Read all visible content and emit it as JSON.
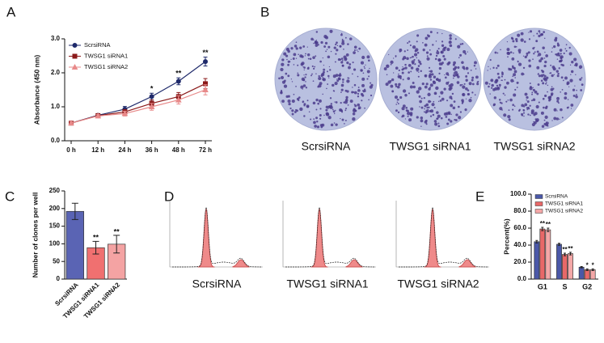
{
  "chart_data": [
    {
      "type": "line",
      "panel": "A",
      "ylabel": "Absorbance (450 nm)",
      "categories": [
        "0 h",
        "12 h",
        "24 h",
        "36 h",
        "48 h",
        "72 h"
      ],
      "ylim": [
        0,
        3
      ],
      "yticks": [
        {
          "value": 0,
          "label": "0.0"
        },
        {
          "value": 1,
          "label": "1.0"
        },
        {
          "value": 2,
          "label": "2.0"
        },
        {
          "value": 3,
          "label": "3.0"
        }
      ],
      "legend": "upper left",
      "series": [
        {
          "name": "ScrsiRNA",
          "color": "#1f2a6b",
          "marker": "circle",
          "values": [
            0.52,
            0.75,
            0.93,
            1.3,
            1.75,
            2.33
          ],
          "errors": [
            0.05,
            0.04,
            0.08,
            0.1,
            0.1,
            0.13
          ],
          "annotations": [
            null,
            null,
            null,
            "*",
            "**",
            "**"
          ]
        },
        {
          "name": "TWSG1 siRNA1",
          "color": "#8b1a1a",
          "marker": "square",
          "values": [
            0.52,
            0.74,
            0.85,
            1.1,
            1.3,
            1.68
          ],
          "errors": [
            0.05,
            0.04,
            0.07,
            0.1,
            0.12,
            0.15
          ]
        },
        {
          "name": "TWSG1 siRNA2",
          "color": "#e88a8a",
          "marker": "triangle",
          "values": [
            0.52,
            0.73,
            0.8,
            1.0,
            1.2,
            1.5
          ],
          "errors": [
            0.05,
            0.04,
            0.07,
            0.1,
            0.12,
            0.15
          ]
        }
      ]
    },
    {
      "type": "image",
      "panel": "B",
      "captions": [
        "ScrsiRNA",
        "TWSG1 siRNA1",
        "TWSG1 siRNA2"
      ]
    },
    {
      "type": "bar",
      "panel": "C",
      "ylabel": "Number of clones per well",
      "categories": [
        "ScrsiRNA",
        "TWSG1 siRNA1",
        "TWSG1 siRNA2"
      ],
      "values": [
        192,
        89,
        99
      ],
      "errors": [
        23,
        18,
        25
      ],
      "colors": [
        "#5a64b4",
        "#f07070",
        "#f4a3a3"
      ],
      "annotations": [
        null,
        "**",
        "**"
      ],
      "xtick_rotation": 45,
      "ylim": [
        0,
        250
      ],
      "yticks": [
        0,
        50,
        100,
        150,
        200,
        250
      ]
    },
    {
      "type": "image",
      "panel": "D",
      "captions": [
        "ScrsiRNA",
        "TWSG1 siRNA1",
        "TWSG1 siRNA2"
      ]
    },
    {
      "type": "bar",
      "panel": "E",
      "ylabel": "Percent(%)",
      "categories": [
        "G1",
        "S",
        "G2"
      ],
      "legend": "upper left",
      "ylim": [
        0,
        100
      ],
      "yticks": [
        {
          "value": 0,
          "label": "0.0"
        },
        {
          "value": 20,
          "label": "20.0"
        },
        {
          "value": 40,
          "label": "40.0"
        },
        {
          "value": 60,
          "label": "60.0"
        },
        {
          "value": 80,
          "label": "80.0"
        },
        {
          "value": 100,
          "label": "100.0"
        }
      ],
      "series": [
        {
          "name": "ScrsiRNA",
          "color": "#4a58a8",
          "values": [
            44,
            41,
            14
          ],
          "errors": [
            1.5,
            1.2,
            0.8
          ]
        },
        {
          "name": "TWSG1 siRNA1",
          "color": "#e86868",
          "values": [
            59,
            29,
            11
          ],
          "errors": [
            2,
            1.5,
            1
          ],
          "annotations": [
            "**",
            "**",
            "*"
          ]
        },
        {
          "name": "TWSG1 siRNA2",
          "color": "#f4a8a8",
          "values": [
            58,
            30,
            11
          ],
          "errors": [
            2,
            1.5,
            1
          ],
          "annotations": [
            "**",
            "**",
            "*"
          ]
        }
      ]
    }
  ]
}
